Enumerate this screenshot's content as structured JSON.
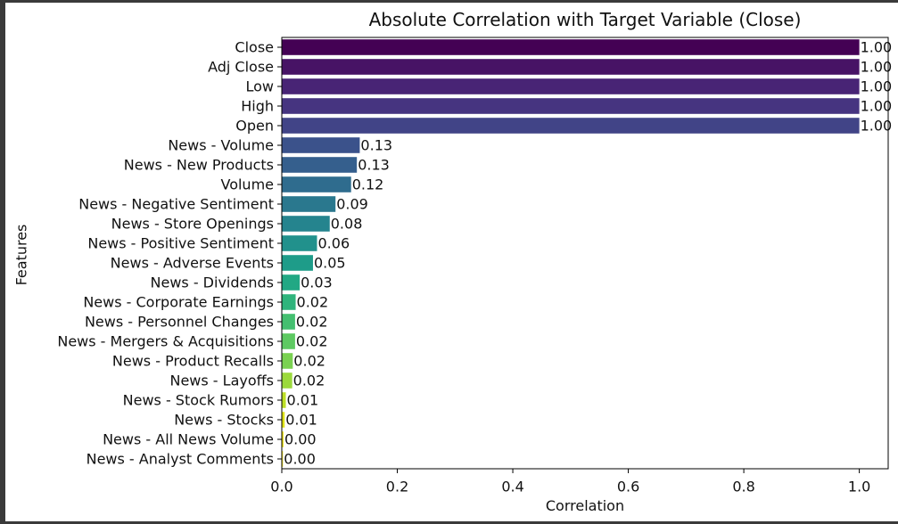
{
  "chart_data": {
    "type": "bar",
    "orientation": "horizontal",
    "title": "Absolute Correlation with Target Variable (Close)",
    "xlabel": "Correlation",
    "ylabel": "Features",
    "xlim": [
      0,
      1.05
    ],
    "xticks": [
      "0.0",
      "0.2",
      "0.4",
      "0.6",
      "0.8",
      "1.0"
    ],
    "grid": false,
    "palette": "viridis",
    "categories": [
      "Close",
      "Adj Close",
      "Low",
      "High",
      "Open",
      "News - Volume",
      "News - New Products",
      "Volume",
      "News - Negative Sentiment",
      "News - Store Openings",
      "News - Positive Sentiment",
      "News - Adverse Events",
      "News - Dividends",
      "News - Corporate Earnings",
      "News - Personnel Changes",
      "News - Mergers & Acquisitions",
      "News - Product Recalls",
      "News - Layoffs",
      "News - Stock Rumors",
      "News - Stocks",
      "News - All News Volume",
      "News - Analyst Comments"
    ],
    "values": [
      1.0,
      1.0,
      1.0,
      1.0,
      1.0,
      0.135,
      0.13,
      0.12,
      0.093,
      0.083,
      0.061,
      0.054,
      0.031,
      0.024,
      0.023,
      0.023,
      0.019,
      0.018,
      0.007,
      0.005,
      0.003,
      0.002
    ],
    "value_labels": [
      "1.00",
      "1.00",
      "1.00",
      "1.00",
      "1.00",
      "0.13",
      "0.13",
      "0.12",
      "0.09",
      "0.08",
      "0.06",
      "0.05",
      "0.03",
      "0.02",
      "0.02",
      "0.02",
      "0.02",
      "0.02",
      "0.01",
      "0.01",
      "0.00",
      "0.00"
    ],
    "colors": [
      "#440154",
      "#471365",
      "#482475",
      "#463480",
      "#414487",
      "#3b528b",
      "#355f8d",
      "#2f6c8e",
      "#2a788e",
      "#25848e",
      "#21918c",
      "#1e9c89",
      "#22a884",
      "#2fb47c",
      "#44bf70",
      "#5ec962",
      "#7ad151",
      "#9bd93c",
      "#bddf26",
      "#dfe318",
      "#f0e51c",
      "#fde725"
    ]
  }
}
